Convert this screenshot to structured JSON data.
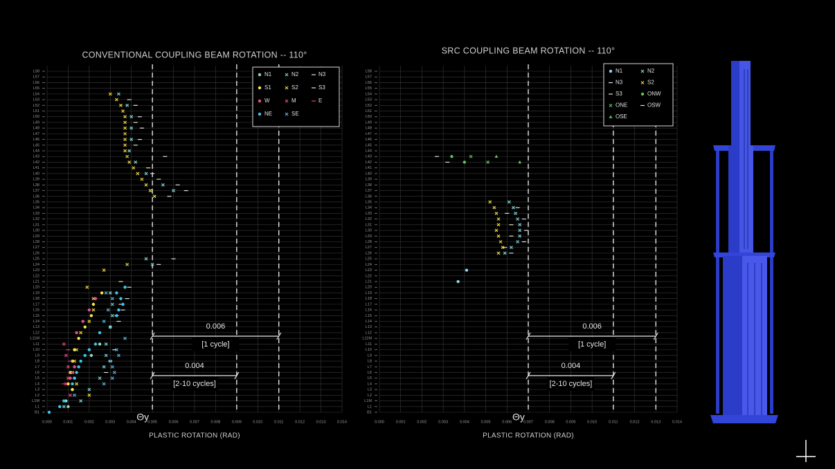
{
  "chart_data": [
    {
      "type": "scatter",
      "title": "CONVENTIONAL COUPLING BEAM ROTATION -- 110°",
      "xlabel": "PLASTIC ROTATION (RAD)",
      "xlim": [
        0,
        0.014
      ],
      "xticks": [
        {
          "value": 0,
          "label": "0.000"
        },
        {
          "value": 0.001,
          "label": "0.001"
        },
        {
          "value": 0.002,
          "label": "0.002"
        },
        {
          "value": 0.003,
          "label": "0.003"
        },
        {
          "value": 0.004,
          "label": "0.004"
        },
        {
          "value": 0.005,
          "label": "0.005"
        },
        {
          "value": 0.006,
          "label": "0.006"
        },
        {
          "value": 0.007,
          "label": "0.007"
        },
        {
          "value": 0.008,
          "label": "0.008"
        },
        {
          "value": 0.009,
          "label": "0.009"
        },
        {
          "value": 0.01,
          "label": "0.010"
        },
        {
          "value": 0.011,
          "label": "0.011"
        },
        {
          "value": 0.012,
          "label": "0.012"
        },
        {
          "value": 0.013,
          "label": "0.013"
        },
        {
          "value": 0.014,
          "label": "0.014"
        }
      ],
      "categories": [
        "B1",
        "L1",
        "L1M",
        "L2",
        "L3",
        "L4",
        "L5",
        "L6",
        "L7",
        "L8",
        "L9",
        "L10",
        "L11",
        "L11M",
        "L12",
        "L13",
        "L14",
        "L15",
        "L16",
        "L17",
        "L18",
        "L19",
        "L20",
        "L21",
        "L22",
        "L23",
        "L24",
        "L25",
        "L26",
        "L27",
        "L28",
        "L29",
        "L30",
        "L31",
        "L32",
        "L33",
        "L34",
        "L35",
        "L36",
        "L37",
        "L38",
        "L39",
        "L40",
        "L41",
        "L42",
        "L43",
        "L44",
        "L45",
        "L46",
        "L47",
        "L48",
        "L49",
        "L50",
        "L51",
        "L52",
        "L53",
        "L54",
        "L55",
        "L56",
        "L57",
        "L58"
      ],
      "grid": true,
      "reference_lines": [
        0.005,
        0.009,
        0.011
      ],
      "threshold_label": "Θy",
      "spans": [
        {
          "from": 0.005,
          "to": 0.011,
          "label": "0.006",
          "note": "[1 cycle]"
        },
        {
          "from": 0.005,
          "to": 0.009,
          "label": "0.004",
          "note": "[2-10 cycles]"
        }
      ],
      "series": [
        {
          "name": "N1",
          "color": "#8fd8c4",
          "marker": "dot",
          "y": [
            "L1",
            "L1M",
            "L3",
            "L5",
            "L9",
            "L11",
            "L13"
          ],
          "values": [
            0.001,
            0.0009,
            0.0012,
            0.0013,
            0.0021,
            0.0025,
            0.003
          ]
        },
        {
          "name": "N2",
          "color": "#7fd0d4",
          "marker": "x",
          "y": [
            "L54",
            "L52",
            "L50",
            "L48",
            "L46",
            "L44",
            "L42",
            "L40",
            "L38",
            "L37",
            "L25",
            "L24",
            "L19",
            "L17",
            "L15",
            "L13",
            "L11",
            "L9",
            "L7",
            "L5",
            "L3",
            "L1M",
            "L1"
          ],
          "values": [
            0.0034,
            0.0038,
            0.004,
            0.004,
            0.004,
            0.0039,
            0.0042,
            0.0047,
            0.0055,
            0.006,
            0.0047,
            0.005,
            0.003,
            0.0031,
            0.0031,
            0.003,
            0.0028,
            0.0028,
            0.0027,
            0.0025,
            0.002,
            0.0016,
            0.0008
          ]
        },
        {
          "name": "N3",
          "color": "#e8e8e8",
          "marker": "dash",
          "y": [
            "L52",
            "L50",
            "L48",
            "L46",
            "L43",
            "L40",
            "L38",
            "L37",
            "L25",
            "L24",
            "L20",
            "L18",
            "L16",
            "L14",
            "L10",
            "L8",
            "L6"
          ],
          "values": [
            0.0042,
            0.0044,
            0.0045,
            0.0044,
            0.0056,
            0.005,
            0.0062,
            0.0066,
            0.006,
            0.0053,
            0.0039,
            0.0038,
            0.0036,
            0.0034,
            0.0032,
            0.003,
            0.0028
          ]
        },
        {
          "name": "S1",
          "color": "#f4e84a",
          "marker": "dot",
          "y": [
            "L19",
            "L17",
            "L15",
            "L13",
            "L11M",
            "L10",
            "L8",
            "L6",
            "L4",
            "L3"
          ],
          "values": [
            0.0026,
            0.0022,
            0.0021,
            0.0018,
            0.0015,
            0.0013,
            0.0012,
            0.0011,
            0.001,
            0.0012
          ]
        },
        {
          "name": "S2",
          "color": "#e8d43c",
          "marker": "x",
          "y": [
            "L54",
            "L53",
            "L52",
            "L51",
            "L50",
            "L49",
            "L48",
            "L47",
            "L46",
            "L45",
            "L44",
            "L43",
            "L42",
            "L41",
            "L40",
            "L39",
            "L38",
            "L37",
            "L36",
            "L24",
            "L23",
            "L20",
            "L18",
            "L16",
            "L14",
            "L12",
            "L10",
            "L8",
            "L6",
            "L4",
            "L2"
          ],
          "values": [
            0.003,
            0.0033,
            0.0035,
            0.0036,
            0.0037,
            0.0037,
            0.0037,
            0.0037,
            0.0037,
            0.0037,
            0.0037,
            0.0038,
            0.0039,
            0.0041,
            0.0043,
            0.0045,
            0.0047,
            0.0049,
            0.0051,
            0.0038,
            0.0027,
            0.0019,
            0.0022,
            0.0022,
            0.002,
            0.0016,
            0.0014,
            0.0013,
            0.0012,
            0.0014,
            0.002
          ]
        },
        {
          "name": "S3",
          "color": "#eee8c8",
          "marker": "dash",
          "y": [
            "L53",
            "L49",
            "L45",
            "L41",
            "L39",
            "L36",
            "L21",
            "L17",
            "L15"
          ],
          "values": [
            0.0039,
            0.0042,
            0.0042,
            0.0048,
            0.0053,
            0.0058,
            0.0035,
            0.0035,
            0.0033
          ]
        },
        {
          "name": "W",
          "color": "#e8508c",
          "marker": "dot",
          "y": [
            "L18",
            "L16",
            "L14",
            "L12",
            "L7",
            "L5"
          ],
          "values": [
            0.0023,
            0.002,
            0.0017,
            0.0014,
            0.0013,
            0.0011
          ]
        },
        {
          "name": "M",
          "color": "#e8407a",
          "marker": "x",
          "y": [
            "L11",
            "L9",
            "L7",
            "L5",
            "L4",
            "L2"
          ],
          "values": [
            0.0008,
            0.0009,
            0.001,
            0.001,
            0.0009,
            0.0011
          ]
        },
        {
          "name": "E",
          "color": "#e8407a",
          "marker": "dash",
          "y": [
            "L10",
            "L8",
            "L6",
            "L4"
          ],
          "values": [
            0.001,
            0.0011,
            0.0012,
            0.0008
          ]
        },
        {
          "name": "NE",
          "color": "#3ec8ec",
          "marker": "dot",
          "y": [
            "L20",
            "L19",
            "L18",
            "L17",
            "L16",
            "L15",
            "L12",
            "L11",
            "L10",
            "L9",
            "L8",
            "L7",
            "L6",
            "L5",
            "L4",
            "B1",
            "L1",
            "L1M"
          ],
          "values": [
            0.0037,
            0.0033,
            0.0035,
            0.0036,
            0.0034,
            0.0033,
            0.0025,
            0.0023,
            0.002,
            0.0018,
            0.0016,
            0.0015,
            0.0014,
            0.0013,
            0.0012,
            0.0001,
            0.0006,
            0.0008
          ]
        },
        {
          "name": "SE",
          "color": "#58b4dc",
          "marker": "x",
          "y": [
            "L19",
            "L18",
            "L16",
            "L14",
            "L11M",
            "L10",
            "L9",
            "L8",
            "L7",
            "L6",
            "L5",
            "L4",
            "L2"
          ],
          "values": [
            0.0028,
            0.0031,
            0.0029,
            0.0027,
            0.0037,
            0.0033,
            0.0034,
            0.003,
            0.0031,
            0.0032,
            0.0031,
            0.0027,
            0.0013
          ]
        }
      ]
    },
    {
      "type": "scatter",
      "title": "SRC COUPLING BEAM ROTATION -- 110°",
      "xlabel": "PLASTIC ROTATION (RAD)",
      "xlim": [
        0,
        0.014
      ],
      "xticks": [
        {
          "value": 0,
          "label": "0.000"
        },
        {
          "value": 0.001,
          "label": "0.001"
        },
        {
          "value": 0.002,
          "label": "0.002"
        },
        {
          "value": 0.003,
          "label": "0.003"
        },
        {
          "value": 0.004,
          "label": "0.004"
        },
        {
          "value": 0.005,
          "label": "0.005"
        },
        {
          "value": 0.006,
          "label": "0.006"
        },
        {
          "value": 0.007,
          "label": "0.007"
        },
        {
          "value": 0.008,
          "label": "0.008"
        },
        {
          "value": 0.009,
          "label": "0.009"
        },
        {
          "value": 0.01,
          "label": "0.010"
        },
        {
          "value": 0.011,
          "label": "0.011"
        },
        {
          "value": 0.012,
          "label": "0.012"
        },
        {
          "value": 0.013,
          "label": "0.013"
        },
        {
          "value": 0.014,
          "label": "0.014"
        }
      ],
      "categories": [
        "B1",
        "L1",
        "L1M",
        "L2",
        "L3",
        "L4",
        "L5",
        "L6",
        "L7",
        "L8",
        "L9",
        "L10",
        "L11",
        "L11M",
        "L12",
        "L13",
        "L14",
        "L15",
        "L16",
        "L17",
        "L18",
        "L19",
        "L20",
        "L21",
        "L22",
        "L23",
        "L24",
        "L25",
        "L26",
        "L27",
        "L28",
        "L29",
        "L30",
        "L31",
        "L32",
        "L33",
        "L34",
        "L35",
        "L36",
        "L37",
        "L38",
        "L39",
        "L40",
        "L41",
        "L42",
        "L43",
        "L44",
        "L45",
        "L46",
        "L47",
        "L48",
        "L49",
        "L50",
        "L51",
        "L52",
        "L53",
        "L54",
        "L55",
        "L56",
        "L57",
        "L58"
      ],
      "grid": true,
      "reference_lines": [
        0.007,
        0.011,
        0.013
      ],
      "threshold_label": "Θy",
      "spans": [
        {
          "from": 0.007,
          "to": 0.013,
          "label": "0.006",
          "note": "[1 cycle]"
        },
        {
          "from": 0.007,
          "to": 0.011,
          "label": "0.004",
          "note": "[2-10 cycles]"
        }
      ],
      "series": [
        {
          "name": "N1",
          "color": "#8fd8e4",
          "marker": "dot",
          "y": [
            "L23",
            "L21"
          ],
          "values": [
            0.0041,
            0.0037
          ]
        },
        {
          "name": "N2",
          "color": "#7fd0d4",
          "marker": "x",
          "y": [
            "L35",
            "L34",
            "L33",
            "L32",
            "L31",
            "L30",
            "L29",
            "L28",
            "L27",
            "L26"
          ],
          "values": [
            0.0061,
            0.0063,
            0.0064,
            0.0065,
            0.0066,
            0.0066,
            0.0066,
            0.0065,
            0.0062,
            0.0059
          ]
        },
        {
          "name": "N3",
          "color": "#e8e8e8",
          "marker": "dash",
          "y": [
            "L34",
            "L32",
            "L30",
            "L28",
            "L26"
          ],
          "values": [
            0.0065,
            0.0068,
            0.0069,
            0.0068,
            0.0062
          ]
        },
        {
          "name": "S2",
          "color": "#e8d43c",
          "marker": "x",
          "y": [
            "L35",
            "L34",
            "L33",
            "L32",
            "L31",
            "L30",
            "L29",
            "L28",
            "L27",
            "L26"
          ],
          "values": [
            0.0052,
            0.0054,
            0.0055,
            0.0056,
            0.0056,
            0.0055,
            0.0056,
            0.0057,
            0.0058,
            0.0056
          ]
        },
        {
          "name": "S3",
          "color": "#eee8c8",
          "marker": "dash",
          "y": [
            "L33",
            "L31",
            "L29",
            "L27"
          ],
          "values": [
            0.006,
            0.0062,
            0.0062,
            0.0059
          ]
        },
        {
          "name": "ONW",
          "color": "#5cc85c",
          "marker": "dot",
          "y": [
            "L43",
            "L42"
          ],
          "values": [
            0.0034,
            0.004
          ]
        },
        {
          "name": "ONE",
          "color": "#5cc85c",
          "marker": "x",
          "y": [
            "L43",
            "L42"
          ],
          "values": [
            0.0043,
            0.0051
          ]
        },
        {
          "name": "OSW",
          "color": "#d8e8d8",
          "marker": "dash",
          "y": [
            "L43",
            "L42"
          ],
          "values": [
            0.0027,
            0.0032
          ]
        },
        {
          "name": "OSE",
          "color": "#5cc85c",
          "marker": "triangle",
          "y": [
            "L43",
            "L42"
          ],
          "values": [
            0.0055,
            0.0066
          ]
        }
      ]
    }
  ]
}
